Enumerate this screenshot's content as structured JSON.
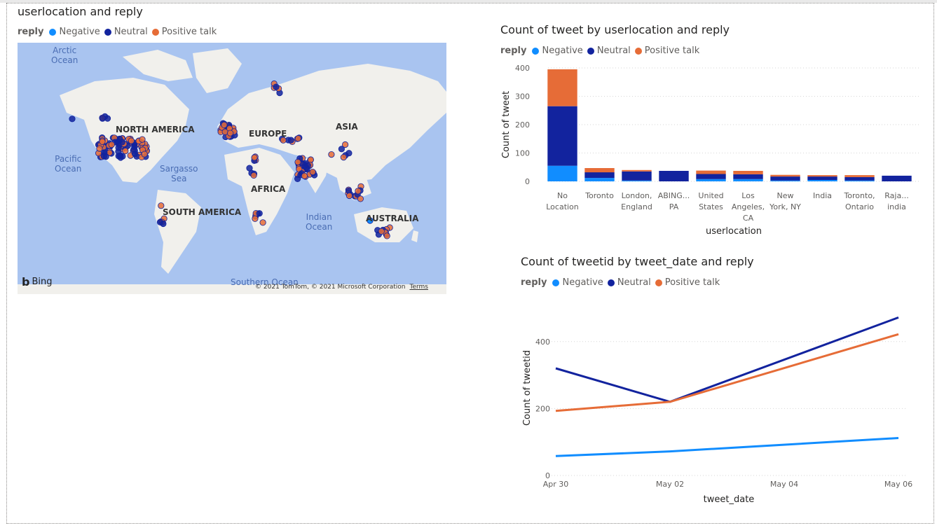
{
  "map_visual": {
    "title": "userlocation and reply",
    "legend_title": "reply",
    "legend": [
      {
        "label": "Negative",
        "color": "#118DFF"
      },
      {
        "label": "Neutral",
        "color": "#12239E"
      },
      {
        "label": "Positive talk",
        "color": "#E66C37"
      }
    ],
    "continent_labels": [
      "NORTH AMERICA",
      "EUROPE",
      "ASIA",
      "AFRICA",
      "SOUTH AMERICA",
      "AUSTRALIA"
    ],
    "ocean_labels": [
      "Arctic\nOcean",
      "Pacific\nOcean",
      "Sargasso\nSea",
      "Indian\nOcean",
      "Southern Ocean"
    ],
    "brand": "Bing",
    "copyright": "© 2021 TomTom, © 2021 Microsoft Corporation",
    "terms": "Terms"
  },
  "bar_visual": {
    "title": "Count of tweet by userlocation and reply",
    "legend_title": "reply",
    "legend": [
      {
        "label": "Negative",
        "color": "#118DFF"
      },
      {
        "label": "Neutral",
        "color": "#12239E"
      },
      {
        "label": "Positive talk",
        "color": "#E66C37"
      }
    ]
  },
  "line_visual": {
    "title": "Count of tweetid by tweet_date and reply",
    "legend_title": "reply",
    "legend": [
      {
        "label": "Negative",
        "color": "#118DFF"
      },
      {
        "label": "Neutral",
        "color": "#12239E"
      },
      {
        "label": "Positive talk",
        "color": "#E66C37"
      }
    ]
  },
  "chart_data": [
    {
      "type": "bar",
      "stacked": true,
      "title": "Count of tweet by userlocation and reply",
      "xlabel": "userlocation",
      "ylabel": "Count of tweet",
      "ylim": [
        0,
        400
      ],
      "yticks": [
        0,
        100,
        200,
        300,
        400
      ],
      "grid": true,
      "legend_position": "top-left",
      "categories": [
        [
          "No",
          "Location"
        ],
        [
          "Toronto"
        ],
        [
          "London,",
          "England"
        ],
        [
          "ABING...",
          "PA"
        ],
        [
          "United",
          "States"
        ],
        [
          "Los",
          "Angeles,",
          "CA"
        ],
        [
          "New",
          "York, NY"
        ],
        [
          "India"
        ],
        [
          "Toronto,",
          "Ontario"
        ],
        [
          "Raja...",
          "india"
        ]
      ],
      "series": [
        {
          "name": "Negative",
          "color": "#118DFF",
          "values": [
            55,
            12,
            3,
            0,
            8,
            8,
            3,
            5,
            3,
            0
          ]
        },
        {
          "name": "Neutral",
          "color": "#12239E",
          "values": [
            210,
            20,
            32,
            37,
            18,
            17,
            14,
            12,
            12,
            20
          ]
        },
        {
          "name": "Positive talk",
          "color": "#E66C37",
          "values": [
            130,
            15,
            5,
            0,
            12,
            12,
            6,
            5,
            7,
            0
          ]
        }
      ]
    },
    {
      "type": "line",
      "title": "Count of tweetid by tweet_date and reply",
      "xlabel": "tweet_date",
      "ylabel": "Count of tweetid",
      "x": [
        "2021-04-30",
        "2021-05-02",
        "2021-05-06"
      ],
      "xticks": [
        "Apr 30",
        "May 02",
        "May 04",
        "May 06"
      ],
      "ylim": [
        0,
        500
      ],
      "yticks": [
        0,
        200,
        400
      ],
      "grid": true,
      "legend_position": "top-left",
      "series": [
        {
          "name": "Negative",
          "color": "#118DFF",
          "values": [
            58,
            72,
            112
          ]
        },
        {
          "name": "Neutral",
          "color": "#12239E",
          "values": [
            320,
            220,
            472
          ]
        },
        {
          "name": "Positive talk",
          "color": "#E66C37",
          "values": [
            193,
            220,
            422
          ]
        }
      ]
    }
  ]
}
